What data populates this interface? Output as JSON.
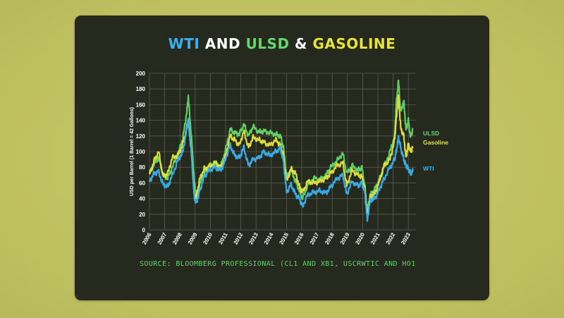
{
  "title": {
    "parts": [
      {
        "text": "WTI",
        "color": "#3ab0f0"
      },
      {
        "text": " AND ",
        "color": "#ffffff"
      },
      {
        "text": "ULSD",
        "color": "#62d86a"
      },
      {
        "text": " & ",
        "color": "#ffffff"
      },
      {
        "text": "GASOLINE",
        "color": "#e6e33c"
      }
    ]
  },
  "source": "SOURCE: BLOOMBERG PROFESSIONAL (CL1 AND XB1, USCRWTIC AND HO1",
  "chart_data": {
    "type": "line",
    "title": "WTI AND ULSD & GASOLINE",
    "xlabel": "",
    "ylabel": "USD per Barrel (1 Barrel = 42 Gallons)",
    "ylim": [
      0,
      200
    ],
    "yticks": [
      0,
      20,
      40,
      60,
      80,
      100,
      120,
      140,
      160,
      180,
      200
    ],
    "xlim": [
      2006,
      2023.5
    ],
    "xticks": [
      "2006",
      "2007",
      "2008",
      "2009",
      "2010",
      "2011",
      "2012",
      "2013",
      "2014",
      "2015",
      "2016",
      "2017",
      "2018",
      "2019",
      "2020",
      "2021",
      "2022",
      "2023"
    ],
    "grid": true,
    "series": [
      {
        "name": "ULSD",
        "color": "#62d86a",
        "points": [
          [
            2006.0,
            72
          ],
          [
            2006.3,
            84
          ],
          [
            2006.6,
            92
          ],
          [
            2006.9,
            70
          ],
          [
            2007.2,
            66
          ],
          [
            2007.5,
            80
          ],
          [
            2007.9,
            98
          ],
          [
            2008.2,
            118
          ],
          [
            2008.45,
            150
          ],
          [
            2008.55,
            170
          ],
          [
            2008.75,
            120
          ],
          [
            2008.95,
            60
          ],
          [
            2009.1,
            40
          ],
          [
            2009.3,
            58
          ],
          [
            2009.6,
            72
          ],
          [
            2009.9,
            82
          ],
          [
            2010.3,
            84
          ],
          [
            2010.7,
            82
          ],
          [
            2010.95,
            98
          ],
          [
            2011.3,
            128
          ],
          [
            2011.6,
            124
          ],
          [
            2011.9,
            122
          ],
          [
            2012.2,
            135
          ],
          [
            2012.5,
            120
          ],
          [
            2012.8,
            132
          ],
          [
            2013.2,
            125
          ],
          [
            2013.5,
            126
          ],
          [
            2013.9,
            124
          ],
          [
            2014.3,
            122
          ],
          [
            2014.6,
            120
          ],
          [
            2014.8,
            105
          ],
          [
            2015.0,
            68
          ],
          [
            2015.3,
            76
          ],
          [
            2015.6,
            62
          ],
          [
            2015.85,
            50
          ],
          [
            2016.05,
            40
          ],
          [
            2016.4,
            58
          ],
          [
            2016.8,
            66
          ],
          [
            2017.2,
            64
          ],
          [
            2017.6,
            70
          ],
          [
            2017.9,
            80
          ],
          [
            2018.3,
            88
          ],
          [
            2018.7,
            98
          ],
          [
            2018.95,
            72
          ],
          [
            2019.3,
            82
          ],
          [
            2019.7,
            76
          ],
          [
            2019.95,
            80
          ],
          [
            2020.15,
            55
          ],
          [
            2020.3,
            25
          ],
          [
            2020.5,
            45
          ],
          [
            2020.8,
            52
          ],
          [
            2021.1,
            64
          ],
          [
            2021.4,
            80
          ],
          [
            2021.8,
            100
          ],
          [
            2022.1,
            120
          ],
          [
            2022.2,
            160
          ],
          [
            2022.35,
            190
          ],
          [
            2022.5,
            150
          ],
          [
            2022.7,
            165
          ],
          [
            2022.85,
            128
          ],
          [
            2023.0,
            140
          ],
          [
            2023.15,
            118
          ],
          [
            2023.3,
            130
          ]
        ]
      },
      {
        "name": "Gasoline",
        "color": "#e6e33c",
        "points": [
          [
            2006.0,
            70
          ],
          [
            2006.3,
            88
          ],
          [
            2006.6,
            100
          ],
          [
            2006.9,
            68
          ],
          [
            2007.2,
            72
          ],
          [
            2007.5,
            92
          ],
          [
            2007.9,
            96
          ],
          [
            2008.2,
            110
          ],
          [
            2008.45,
            130
          ],
          [
            2008.55,
            140
          ],
          [
            2008.75,
            100
          ],
          [
            2008.95,
            42
          ],
          [
            2009.1,
            44
          ],
          [
            2009.3,
            65
          ],
          [
            2009.6,
            78
          ],
          [
            2009.9,
            80
          ],
          [
            2010.3,
            86
          ],
          [
            2010.7,
            80
          ],
          [
            2010.95,
            90
          ],
          [
            2011.3,
            120
          ],
          [
            2011.6,
            115
          ],
          [
            2011.9,
            108
          ],
          [
            2012.2,
            126
          ],
          [
            2012.5,
            105
          ],
          [
            2012.8,
            118
          ],
          [
            2013.2,
            115
          ],
          [
            2013.5,
            112
          ],
          [
            2013.9,
            108
          ],
          [
            2014.3,
            115
          ],
          [
            2014.6,
            108
          ],
          [
            2014.8,
            95
          ],
          [
            2015.0,
            62
          ],
          [
            2015.3,
            78
          ],
          [
            2015.6,
            72
          ],
          [
            2015.85,
            55
          ],
          [
            2016.05,
            48
          ],
          [
            2016.4,
            62
          ],
          [
            2016.8,
            60
          ],
          [
            2017.2,
            62
          ],
          [
            2017.6,
            66
          ],
          [
            2017.9,
            72
          ],
          [
            2018.3,
            82
          ],
          [
            2018.7,
            86
          ],
          [
            2018.95,
            56
          ],
          [
            2019.3,
            76
          ],
          [
            2019.7,
            70
          ],
          [
            2019.95,
            68
          ],
          [
            2020.15,
            50
          ],
          [
            2020.3,
            18
          ],
          [
            2020.5,
            42
          ],
          [
            2020.8,
            46
          ],
          [
            2021.1,
            62
          ],
          [
            2021.4,
            82
          ],
          [
            2021.8,
            90
          ],
          [
            2022.1,
            115
          ],
          [
            2022.2,
            140
          ],
          [
            2022.35,
            172
          ],
          [
            2022.5,
            130
          ],
          [
            2022.7,
            120
          ],
          [
            2022.85,
            92
          ],
          [
            2023.0,
            110
          ],
          [
            2023.15,
            100
          ],
          [
            2023.3,
            106
          ]
        ]
      },
      {
        "name": "WTI",
        "color": "#3ab0f0",
        "points": [
          [
            2006.0,
            62
          ],
          [
            2006.3,
            72
          ],
          [
            2006.6,
            74
          ],
          [
            2006.9,
            58
          ],
          [
            2007.2,
            55
          ],
          [
            2007.5,
            70
          ],
          [
            2007.9,
            90
          ],
          [
            2008.2,
            100
          ],
          [
            2008.45,
            130
          ],
          [
            2008.55,
            140
          ],
          [
            2008.75,
            100
          ],
          [
            2008.95,
            40
          ],
          [
            2009.1,
            35
          ],
          [
            2009.3,
            50
          ],
          [
            2009.6,
            68
          ],
          [
            2009.9,
            76
          ],
          [
            2010.3,
            80
          ],
          [
            2010.7,
            76
          ],
          [
            2010.95,
            88
          ],
          [
            2011.3,
            108
          ],
          [
            2011.6,
            95
          ],
          [
            2011.9,
            92
          ],
          [
            2012.2,
            105
          ],
          [
            2012.5,
            82
          ],
          [
            2012.8,
            90
          ],
          [
            2013.2,
            92
          ],
          [
            2013.5,
            100
          ],
          [
            2013.9,
            95
          ],
          [
            2014.3,
            100
          ],
          [
            2014.6,
            104
          ],
          [
            2014.8,
            88
          ],
          [
            2015.0,
            48
          ],
          [
            2015.3,
            58
          ],
          [
            2015.6,
            45
          ],
          [
            2015.85,
            40
          ],
          [
            2016.05,
            30
          ],
          [
            2016.4,
            45
          ],
          [
            2016.8,
            48
          ],
          [
            2017.2,
            50
          ],
          [
            2017.6,
            47
          ],
          [
            2017.9,
            55
          ],
          [
            2018.3,
            65
          ],
          [
            2018.7,
            70
          ],
          [
            2018.95,
            45
          ],
          [
            2019.3,
            62
          ],
          [
            2019.7,
            56
          ],
          [
            2019.95,
            60
          ],
          [
            2020.15,
            48
          ],
          [
            2020.3,
            12
          ],
          [
            2020.5,
            38
          ],
          [
            2020.8,
            40
          ],
          [
            2021.1,
            52
          ],
          [
            2021.4,
            65
          ],
          [
            2021.8,
            80
          ],
          [
            2022.1,
            90
          ],
          [
            2022.2,
            100
          ],
          [
            2022.35,
            118
          ],
          [
            2022.5,
            105
          ],
          [
            2022.7,
            90
          ],
          [
            2022.85,
            82
          ],
          [
            2023.0,
            78
          ],
          [
            2023.15,
            72
          ],
          [
            2023.3,
            75
          ]
        ]
      }
    ]
  }
}
